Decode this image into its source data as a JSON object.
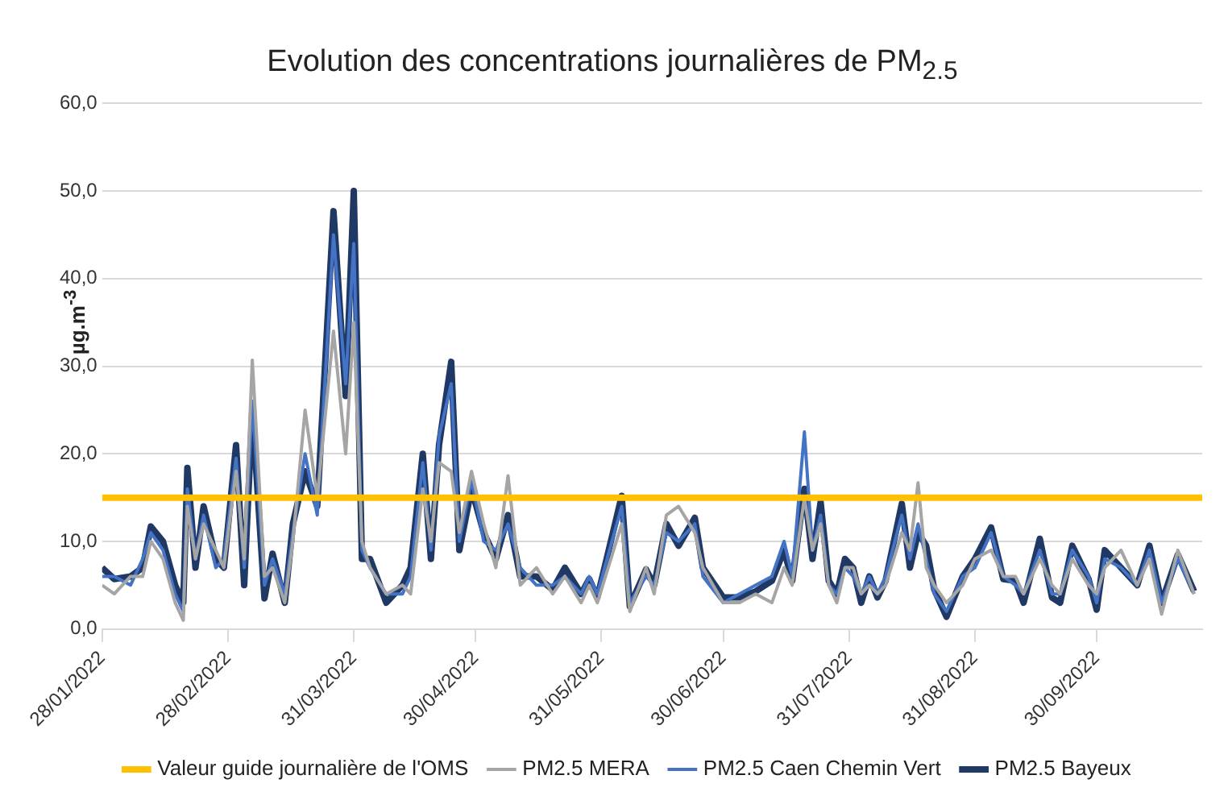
{
  "chart_data": {
    "type": "line",
    "title": "Evolution des concentrations journalières de PM$_{2.5}$",
    "ylabel": "µg.m$^{-3}$",
    "x": [
      "2022-01-28",
      "2022-01-31",
      "2022-02-04",
      "2022-02-07",
      "2022-02-09",
      "2022-02-12",
      "2022-02-15",
      "2022-02-17",
      "2022-02-18",
      "2022-02-20",
      "2022-02-22",
      "2022-02-25",
      "2022-02-27",
      "2022-03-02",
      "2022-03-04",
      "2022-03-06",
      "2022-03-09",
      "2022-03-11",
      "2022-03-14",
      "2022-03-16",
      "2022-03-19",
      "2022-03-22",
      "2022-03-26",
      "2022-03-29",
      "2022-03-31",
      "2022-04-02",
      "2022-04-04",
      "2022-04-08",
      "2022-04-12",
      "2022-04-14",
      "2022-04-17",
      "2022-04-19",
      "2022-04-21",
      "2022-04-24",
      "2022-04-26",
      "2022-04-29",
      "2022-05-02",
      "2022-05-05",
      "2022-05-08",
      "2022-05-11",
      "2022-05-15",
      "2022-05-19",
      "2022-05-22",
      "2022-05-26",
      "2022-05-28",
      "2022-05-30",
      "2022-06-05",
      "2022-06-07",
      "2022-06-11",
      "2022-06-13",
      "2022-06-16",
      "2022-06-19",
      "2022-06-23",
      "2022-06-25",
      "2022-06-30",
      "2022-07-04",
      "2022-07-08",
      "2022-07-12",
      "2022-07-15",
      "2022-07-17",
      "2022-07-20",
      "2022-07-22",
      "2022-07-24",
      "2022-07-26",
      "2022-07-28",
      "2022-07-30",
      "2022-08-01",
      "2022-08-03",
      "2022-08-05",
      "2022-08-07",
      "2022-08-09",
      "2022-08-13",
      "2022-08-15",
      "2022-08-17",
      "2022-08-19",
      "2022-08-21",
      "2022-08-24",
      "2022-08-28",
      "2022-08-31",
      "2022-09-04",
      "2022-09-07",
      "2022-09-10",
      "2022-09-12",
      "2022-09-16",
      "2022-09-19",
      "2022-09-21",
      "2022-09-24",
      "2022-09-28",
      "2022-09-30",
      "2022-10-02",
      "2022-10-06",
      "2022-10-10",
      "2022-10-13",
      "2022-10-16",
      "2022-10-20",
      "2022-10-24"
    ],
    "series": [
      {
        "name": "PM2.5 Bayeux",
        "color": "#1f3864",
        "values": [
          7,
          5.7,
          6,
          7,
          11.7,
          10,
          5,
          3,
          18.4,
          7,
          14,
          8,
          7,
          21,
          5,
          25,
          3.5,
          8.6,
          3,
          12,
          18,
          14,
          47.7,
          26.6,
          50,
          8,
          8,
          3,
          5,
          7,
          20,
          8,
          21,
          30.5,
          9,
          16,
          11,
          8,
          13,
          6,
          6,
          4.5,
          7,
          4,
          5.7,
          3.6,
          15.2,
          2.6,
          6.8,
          5,
          12,
          9.5,
          12.7,
          7,
          3.6,
          3.6,
          4.3,
          5.5,
          9,
          5.5,
          16,
          8,
          14.5,
          5.5,
          4,
          8,
          7,
          3,
          6,
          3.6,
          5.5,
          14.3,
          7,
          11,
          9.5,
          4.5,
          1.4,
          6,
          8,
          11.6,
          5.7,
          5.5,
          3,
          10.3,
          3.6,
          3,
          9.5,
          5.7,
          2.2,
          9,
          7,
          5,
          9.5,
          3,
          8.5,
          4.3
        ]
      },
      {
        "name": "PM2.5 Caen Chemin Vert",
        "color": "#4472c4",
        "values": [
          6,
          6,
          5,
          8,
          11,
          9,
          4,
          2,
          16,
          8,
          13,
          7,
          8,
          19.5,
          7,
          26,
          5,
          8,
          4,
          11,
          20,
          13,
          45,
          28,
          44,
          9,
          7,
          4,
          4,
          6,
          19,
          9,
          22,
          28,
          10,
          17,
          10,
          9,
          12,
          7,
          5,
          5,
          6,
          4,
          6,
          4,
          14,
          3,
          6,
          5,
          11,
          10,
          12,
          6,
          3,
          4,
          5,
          6,
          10,
          6,
          22.5,
          9,
          13,
          5,
          4,
          7,
          6,
          4,
          6,
          4,
          6,
          13,
          8,
          12,
          8,
          4,
          2,
          6,
          7,
          11,
          6,
          5,
          4,
          9,
          4,
          4,
          9,
          6,
          3,
          8,
          7,
          5,
          9,
          3,
          8,
          4
        ]
      },
      {
        "name": "PM2.5 MERA",
        "color": "#a5a5a5",
        "values": [
          5,
          4,
          6,
          6,
          10,
          8,
          3,
          1,
          14,
          8,
          12,
          9,
          7,
          18,
          8,
          30.7,
          6,
          7,
          3,
          10,
          25,
          15,
          34,
          20,
          35,
          10,
          7,
          4,
          5,
          4,
          16,
          10,
          19,
          18,
          11,
          18,
          12,
          7,
          17.5,
          5,
          7,
          4,
          6,
          3,
          5,
          3,
          12,
          2,
          7,
          4,
          13,
          14,
          11,
          7,
          3,
          3,
          4,
          3,
          7,
          5,
          15,
          9,
          12,
          5,
          3,
          7,
          7,
          4,
          5,
          4,
          5,
          11,
          9,
          16.7,
          7,
          5,
          3,
          5,
          8,
          9,
          6,
          6,
          4,
          8,
          5,
          4,
          8,
          5,
          4,
          7,
          9,
          5,
          8,
          1.7,
          9,
          4
        ]
      }
    ],
    "ref_lines": [
      {
        "axis": "y",
        "value": 15,
        "label": "Valeur guide journalière de l'OMS",
        "color": "#ffc000"
      }
    ],
    "xlim": [
      "2022-01-28",
      "2022-10-26"
    ],
    "xticks": [
      {
        "value": "2022-01-28",
        "label": "28/01/2022"
      },
      {
        "value": "2022-02-28",
        "label": "28/02/2022"
      },
      {
        "value": "2022-03-31",
        "label": "31/03/2022"
      },
      {
        "value": "2022-04-30",
        "label": "30/04/2022"
      },
      {
        "value": "2022-05-31",
        "label": "31/05/2022"
      },
      {
        "value": "2022-06-30",
        "label": "30/06/2022"
      },
      {
        "value": "2022-07-31",
        "label": "31/07/2022"
      },
      {
        "value": "2022-08-31",
        "label": "31/08/2022"
      },
      {
        "value": "2022-09-30",
        "label": "30/09/2022"
      }
    ],
    "ylim": [
      0,
      60
    ],
    "yticks": [
      {
        "value": 0,
        "label": "0,0"
      },
      {
        "value": 10,
        "label": "10,0"
      },
      {
        "value": 20,
        "label": "20,0"
      },
      {
        "value": 30,
        "label": "30,0"
      },
      {
        "value": 40,
        "label": "40,0"
      },
      {
        "value": 50,
        "label": "50,0"
      },
      {
        "value": 60,
        "label": "60,0"
      }
    ],
    "grid": "y",
    "legend": "bottom",
    "marker": "none",
    "line_style": "solid"
  }
}
